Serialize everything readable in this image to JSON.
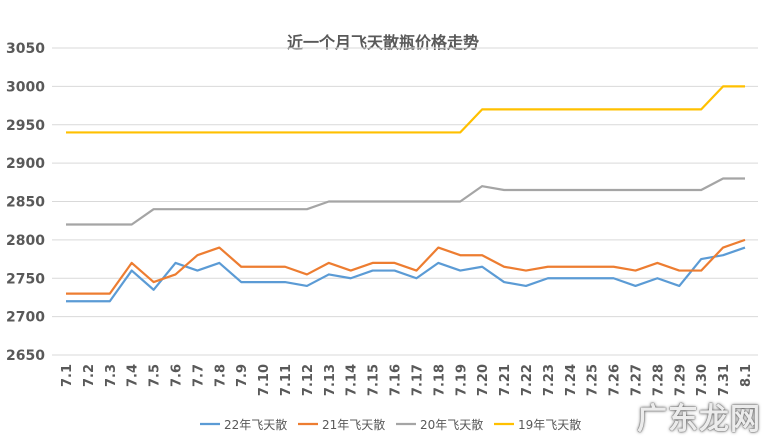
{
  "chart_data": {
    "type": "line",
    "title": "近一个月飞天散瓶价格走势",
    "xlabel": "",
    "ylabel": "",
    "ylim": [
      2650,
      3050
    ],
    "yticks": [
      2650,
      2700,
      2750,
      2800,
      2850,
      2900,
      2950,
      3000,
      3050
    ],
    "grid": true,
    "legend_position": "bottom",
    "categories": [
      "7.1",
      "7.2",
      "7.3",
      "7.4",
      "7.5",
      "7.6",
      "7.7",
      "7.8",
      "7.9",
      "7.10",
      "7.11",
      "7.12",
      "7.13",
      "7.14",
      "7.15",
      "7.16",
      "7.17",
      "7.18",
      "7.19",
      "7.20",
      "7.21",
      "7.22",
      "7.23",
      "7.24",
      "7.25",
      "7.26",
      "7.27",
      "7.28",
      "7.29",
      "7.30",
      "7.31",
      "8.1"
    ],
    "series": [
      {
        "name": "22年飞天散",
        "color": "#5b9bd5",
        "values": [
          2720,
          2720,
          2720,
          2760,
          2735,
          2770,
          2760,
          2770,
          2745,
          2745,
          2745,
          2740,
          2755,
          2750,
          2760,
          2760,
          2750,
          2770,
          2760,
          2765,
          2745,
          2740,
          2750,
          2750,
          2750,
          2750,
          2740,
          2750,
          2740,
          2775,
          2780,
          2790
        ]
      },
      {
        "name": "21年飞天散",
        "color": "#ed7d31",
        "values": [
          2730,
          2730,
          2730,
          2770,
          2745,
          2755,
          2780,
          2790,
          2765,
          2765,
          2765,
          2755,
          2770,
          2760,
          2770,
          2770,
          2760,
          2790,
          2780,
          2780,
          2765,
          2760,
          2765,
          2765,
          2765,
          2765,
          2760,
          2770,
          2760,
          2760,
          2790,
          2800
        ]
      },
      {
        "name": "20年飞天散",
        "color": "#a5a5a5",
        "values": [
          2820,
          2820,
          2820,
          2820,
          2840,
          2840,
          2840,
          2840,
          2840,
          2840,
          2840,
          2840,
          2850,
          2850,
          2850,
          2850,
          2850,
          2850,
          2850,
          2870,
          2865,
          2865,
          2865,
          2865,
          2865,
          2865,
          2865,
          2865,
          2865,
          2865,
          2880,
          2880
        ]
      },
      {
        "name": "19年飞天散",
        "color": "#ffc000",
        "values": [
          2940,
          2940,
          2940,
          2940,
          2940,
          2940,
          2940,
          2940,
          2940,
          2940,
          2940,
          2940,
          2940,
          2940,
          2940,
          2940,
          2940,
          2940,
          2940,
          2970,
          2970,
          2970,
          2970,
          2970,
          2970,
          2970,
          2970,
          2970,
          2970,
          2970,
          3000,
          3000
        ]
      }
    ]
  },
  "watermark": "广东龙网"
}
